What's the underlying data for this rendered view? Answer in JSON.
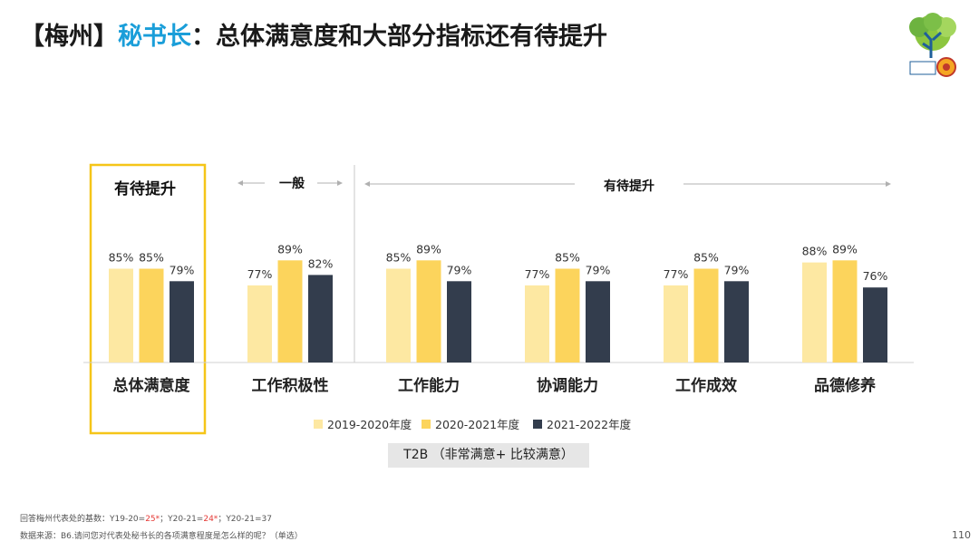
{
  "title": {
    "prefix": "【梅州】",
    "highlight": "秘书长",
    "rest": "：总体满意度和大部分指标还有待提升"
  },
  "colors": {
    "series": [
      "#fde8a2",
      "#fcd45c",
      "#333d4d"
    ],
    "highlight_box": "#f5c518",
    "title_accent": "#1a9ed9"
  },
  "groups": {
    "g1": "有待提升",
    "g2": "一般",
    "g3": "有待提升"
  },
  "chart_data": {
    "type": "bar",
    "categories": [
      "总体满意度",
      "工作积极性",
      "工作能力",
      "协调能力",
      "工作成效",
      "品德修养"
    ],
    "series": [
      {
        "name": "2019-2020年度",
        "values": [
          85,
          77,
          85,
          77,
          77,
          88
        ]
      },
      {
        "name": "2020-2021年度",
        "values": [
          85,
          89,
          89,
          85,
          85,
          89
        ]
      },
      {
        "name": "2021-2022年度",
        "values": [
          79,
          82,
          79,
          79,
          79,
          76
        ]
      }
    ],
    "value_suffix": "%",
    "legend_position": "bottom",
    "ylim": [
      0,
      100
    ]
  },
  "metric_label": "T2B （非常满意+ 比较满意）",
  "footnote1": {
    "prefix": "回答梅州代表处的基数：Y19-20=",
    "v1": "25*",
    "mid1": "；Y20-21=",
    "v2": "24*",
    "mid2": "；Y20-21=",
    "v3": "37"
  },
  "footnote2": "数据来源：B6.请问您对代表处秘书长的各项满意程度是怎么样的呢？（单选）",
  "page_number": "110"
}
